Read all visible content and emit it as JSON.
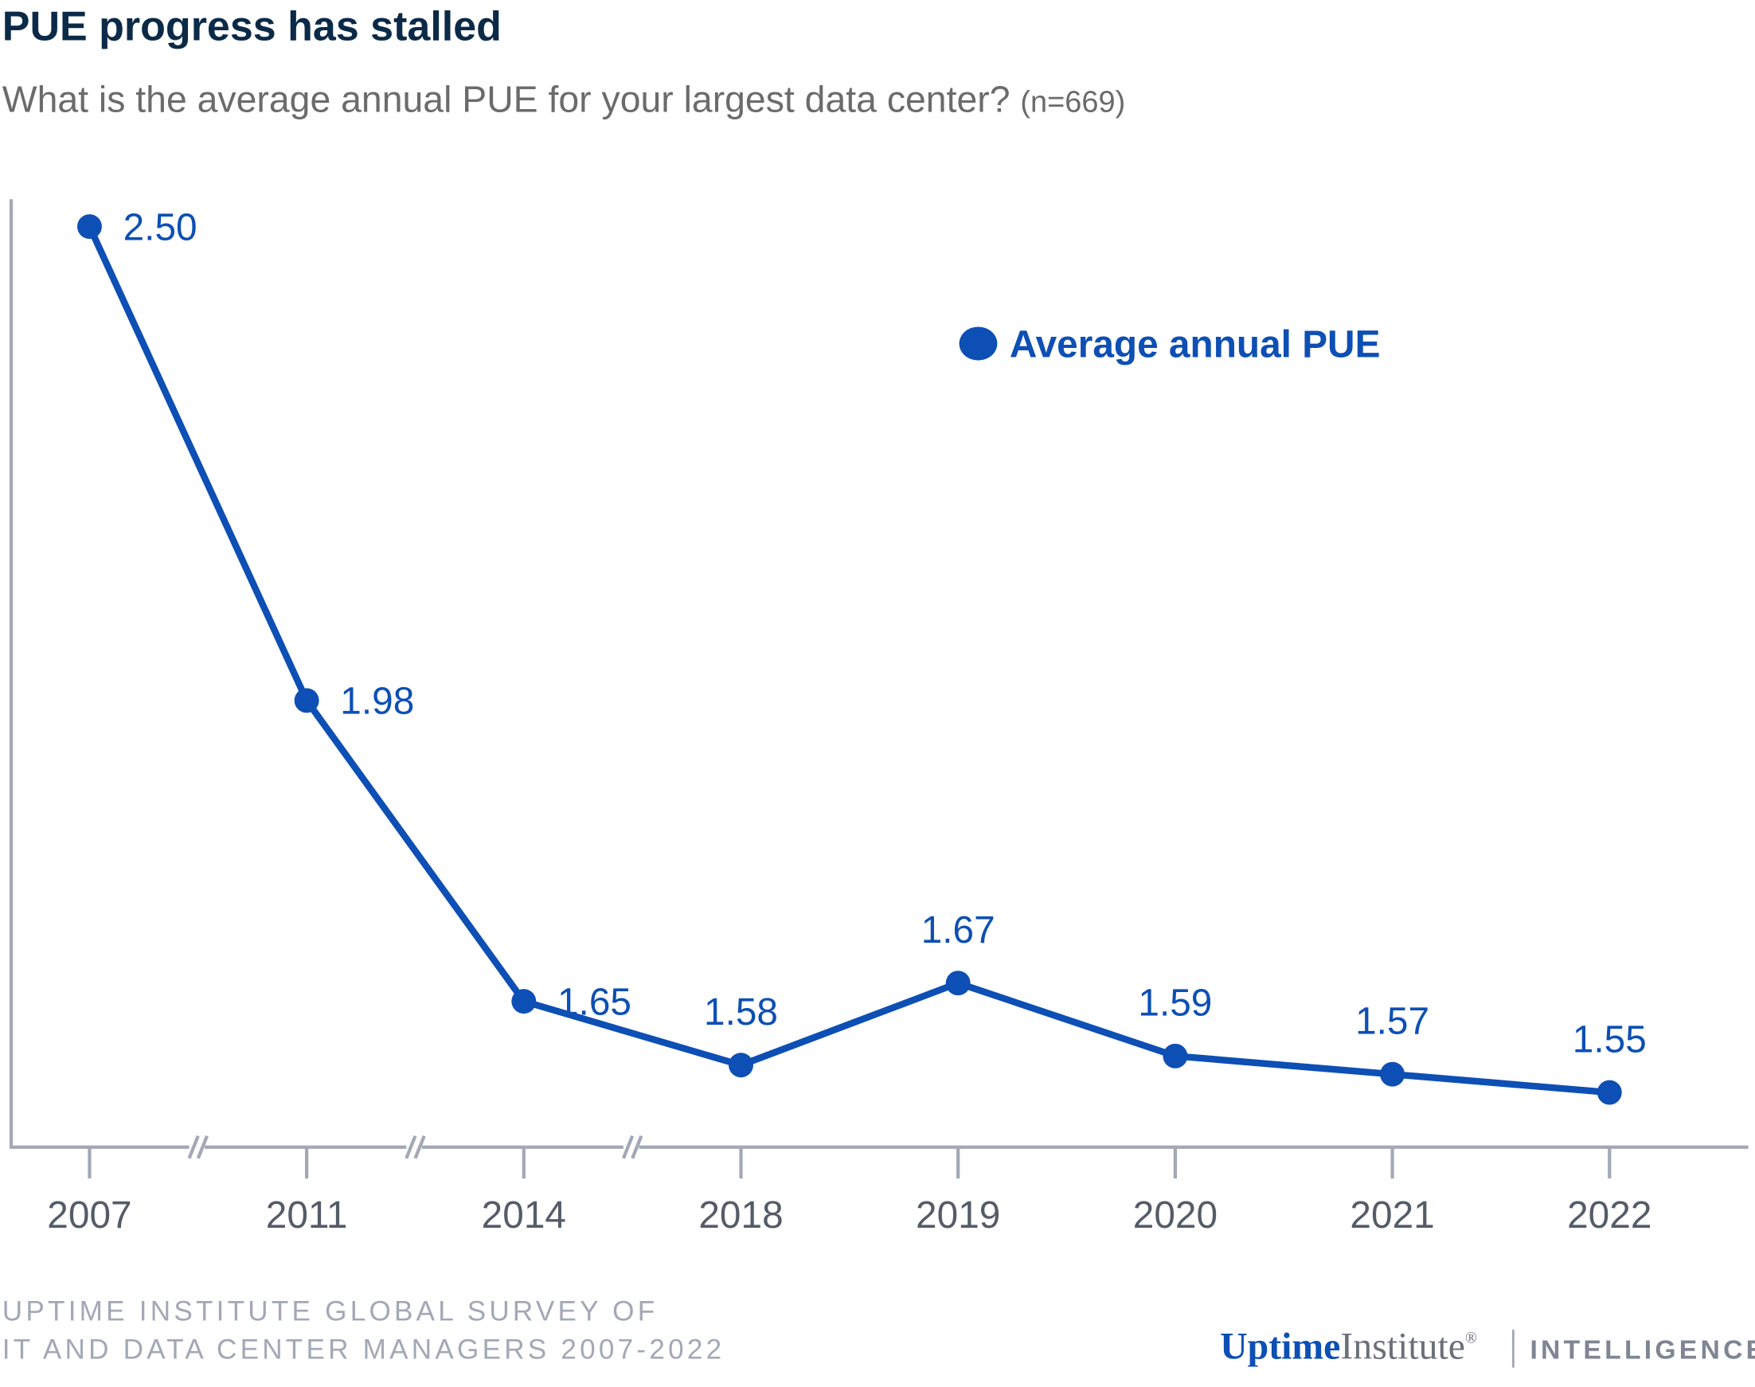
{
  "chart_data": {
    "type": "line",
    "title": "PUE progress has stalled",
    "subtitle": "What is the average annual PUE for your largest data center?",
    "subtitle_note": "(n=669)",
    "categories": [
      "2007",
      "2011",
      "2014",
      "2018",
      "2019",
      "2020",
      "2021",
      "2022"
    ],
    "series": [
      {
        "name": "Average annual PUE",
        "color": "#0d4fb4",
        "values": [
          2.5,
          1.98,
          1.65,
          1.58,
          1.67,
          1.59,
          1.57,
          1.55
        ],
        "value_labels": [
          "2.50",
          "1.98",
          "1.65",
          "1.58",
          "1.67",
          "1.59",
          "1.57",
          "1.55"
        ]
      }
    ],
    "ylim": [
      1.49,
      2.53
    ],
    "legend": "upper right",
    "source": [
      "UPTIME INSTITUTE GLOBAL SURVEY OF",
      "IT AND DATA CENTER MANAGERS 2007-2022"
    ],
    "logo": {
      "brand": "Uptime",
      "name": "Institute",
      "registered": "®",
      "division": "INTELLIGENCE"
    }
  }
}
